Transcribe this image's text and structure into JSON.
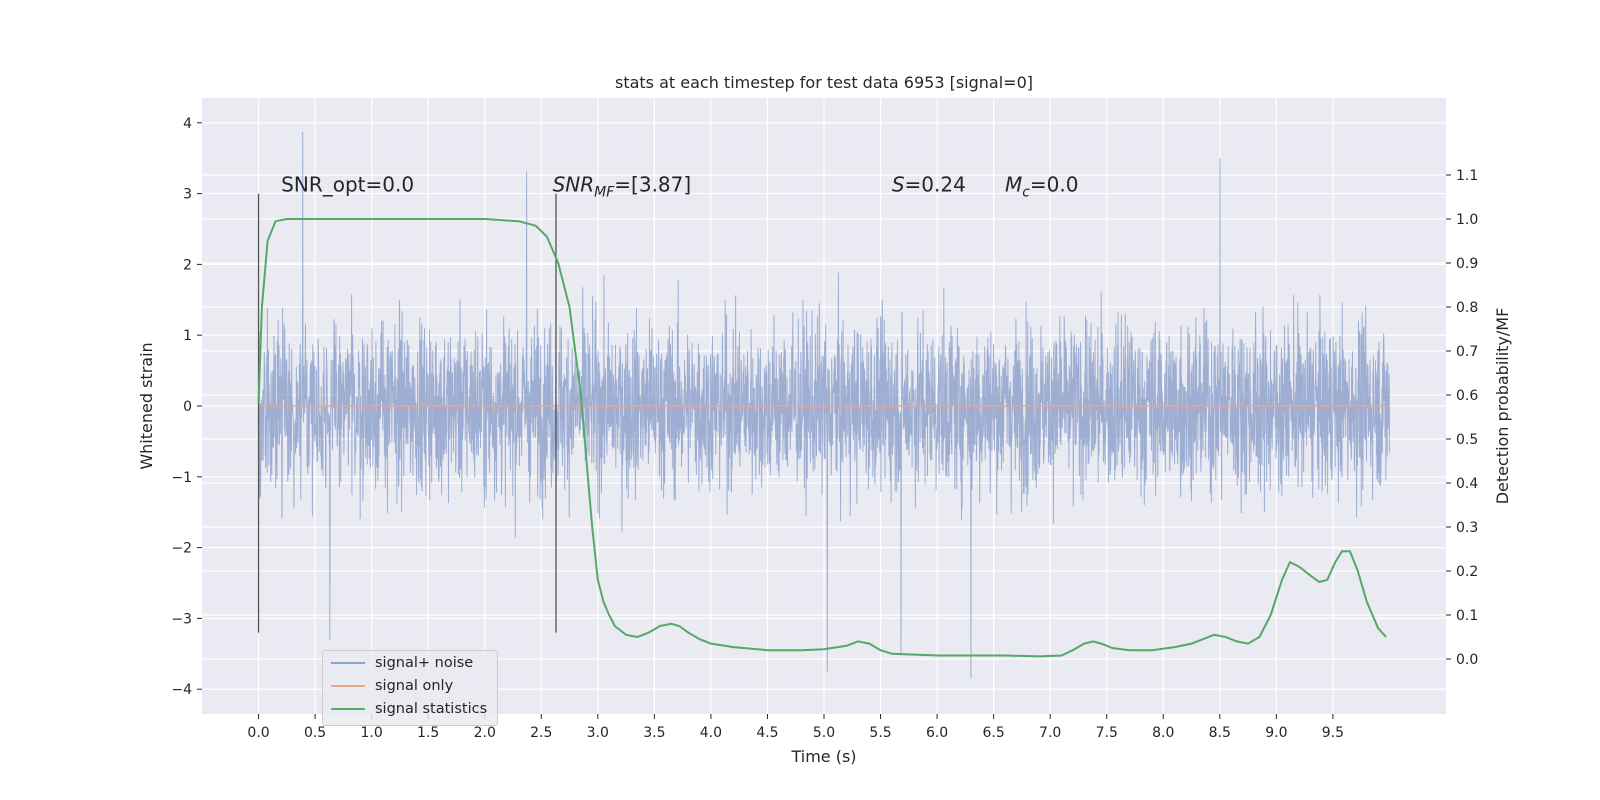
{
  "chart_data": {
    "type": "line",
    "title": "stats at each timestep for test data 6953 [signal=0]",
    "xlabel": "Time (s)",
    "ylabel": "Whitened strain",
    "ylabel_right": "Detection probability/MF",
    "xlim": [
      -0.5,
      10.5
    ],
    "ylim": [
      -4.35,
      4.35
    ],
    "ylim_right": [
      -0.125,
      1.275
    ],
    "x_ticks": [
      "0.0",
      "0.5",
      "1.0",
      "1.5",
      "2.0",
      "2.5",
      "3.0",
      "3.5",
      "4.0",
      "4.5",
      "5.0",
      "5.5",
      "6.0",
      "6.5",
      "7.0",
      "7.5",
      "8.0",
      "8.5",
      "9.0",
      "9.5"
    ],
    "y_ticks": [
      "−4",
      "−3",
      "−2",
      "−1",
      "0",
      "1",
      "2",
      "3",
      "4"
    ],
    "y_ticks_right": [
      "0.0",
      "0.1",
      "0.2",
      "0.3",
      "0.4",
      "0.5",
      "0.6",
      "0.7",
      "0.8",
      "0.9",
      "1.0",
      "1.1"
    ],
    "grid": true,
    "legend_position": "lower-left",
    "annotations": [
      {
        "text": "SNR_opt=0.0",
        "x": 0.2,
        "y": 3.0
      },
      {
        "text": "SNR",
        "sub": "MF",
        "rest": "=[3.87]",
        "x": 2.6,
        "y": 3.0
      },
      {
        "text": "S",
        "rest": "=0.24",
        "x": 5.6,
        "y": 3.0
      },
      {
        "text": "M",
        "sub": "c",
        "rest": "=0.0",
        "x": 6.6,
        "y": 3.0
      }
    ],
    "vlines": [
      {
        "x": 0.0,
        "ymin": -3.2,
        "ymax": 3.0
      },
      {
        "x": 2.63,
        "ymin": -3.2,
        "ymax": 3.0
      }
    ],
    "series": [
      {
        "name": "signal+ noise",
        "color": "#8fa3cc",
        "description_of_values": "whitened strain noise, roughly ±1.5 band with spikes to ±3.9",
        "x_range": [
          0.0,
          10.0
        ],
        "envelope_quantiles": {
          "typical_abs": 1.3,
          "peak_max": 3.87,
          "peak_min": -3.85
        },
        "notable_peaks": [
          {
            "x": 0.39,
            "y": 3.87
          },
          {
            "x": 2.37,
            "y": 3.3
          },
          {
            "x": 8.5,
            "y": 3.5
          },
          {
            "x": 5.03,
            "y": -3.75
          },
          {
            "x": 6.3,
            "y": -3.85
          },
          {
            "x": 0.63,
            "y": -3.3
          },
          {
            "x": 5.68,
            "y": -3.5
          }
        ]
      },
      {
        "name": "signal only",
        "color": "#dd8452",
        "x": [
          0.0,
          10.0
        ],
        "values": [
          0.0,
          0.0
        ]
      },
      {
        "name": "signal statistics",
        "color": "#55a868",
        "axis": "right",
        "x": [
          0.0,
          0.03,
          0.08,
          0.15,
          0.25,
          0.5,
          1.0,
          1.5,
          2.0,
          2.3,
          2.45,
          2.55,
          2.65,
          2.75,
          2.85,
          2.9,
          2.95,
          3.0,
          3.05,
          3.1,
          3.15,
          3.25,
          3.35,
          3.45,
          3.55,
          3.65,
          3.72,
          3.8,
          3.9,
          4.0,
          4.2,
          4.5,
          4.8,
          5.0,
          5.2,
          5.3,
          5.4,
          5.5,
          5.6,
          5.8,
          6.0,
          6.3,
          6.6,
          6.9,
          7.1,
          7.2,
          7.3,
          7.38,
          7.45,
          7.55,
          7.7,
          7.9,
          8.1,
          8.25,
          8.35,
          8.45,
          8.55,
          8.65,
          8.75,
          8.85,
          8.95,
          9.05,
          9.12,
          9.2,
          9.3,
          9.38,
          9.45,
          9.52,
          9.58,
          9.65,
          9.72,
          9.8,
          9.9,
          9.97
        ],
        "values": [
          0.58,
          0.8,
          0.95,
          0.995,
          1.0,
          1.0,
          1.0,
          1.0,
          1.0,
          0.995,
          0.985,
          0.96,
          0.9,
          0.8,
          0.6,
          0.45,
          0.3,
          0.18,
          0.13,
          0.1,
          0.075,
          0.055,
          0.05,
          0.06,
          0.075,
          0.08,
          0.075,
          0.06,
          0.045,
          0.035,
          0.027,
          0.02,
          0.02,
          0.022,
          0.03,
          0.04,
          0.035,
          0.02,
          0.012,
          0.01,
          0.008,
          0.008,
          0.008,
          0.006,
          0.008,
          0.02,
          0.035,
          0.04,
          0.035,
          0.025,
          0.02,
          0.02,
          0.027,
          0.035,
          0.045,
          0.055,
          0.05,
          0.04,
          0.035,
          0.05,
          0.1,
          0.18,
          0.22,
          0.21,
          0.19,
          0.175,
          0.18,
          0.22,
          0.245,
          0.245,
          0.2,
          0.13,
          0.07,
          0.05
        ]
      }
    ]
  }
}
